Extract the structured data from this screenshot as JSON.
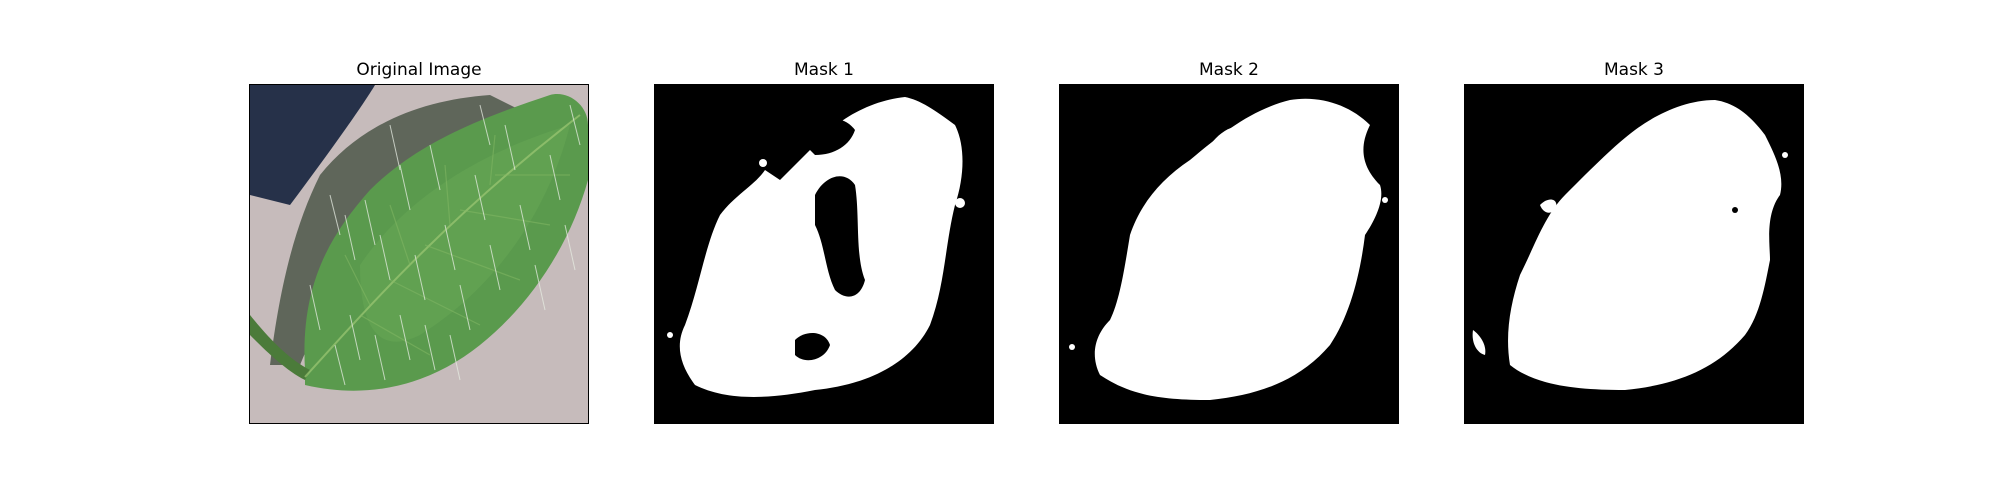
{
  "panels": [
    {
      "title": "Original Image"
    },
    {
      "title": "Mask 1"
    },
    {
      "title": "Mask 2"
    },
    {
      "title": "Mask 3"
    }
  ],
  "colors": {
    "background": "#c7bcbc",
    "shadow": "#26314a",
    "leaf": "#5b9a4e",
    "leaf_dark": "#3e7636",
    "mask_fg": "#ffffff",
    "mask_bg": "#000000"
  }
}
